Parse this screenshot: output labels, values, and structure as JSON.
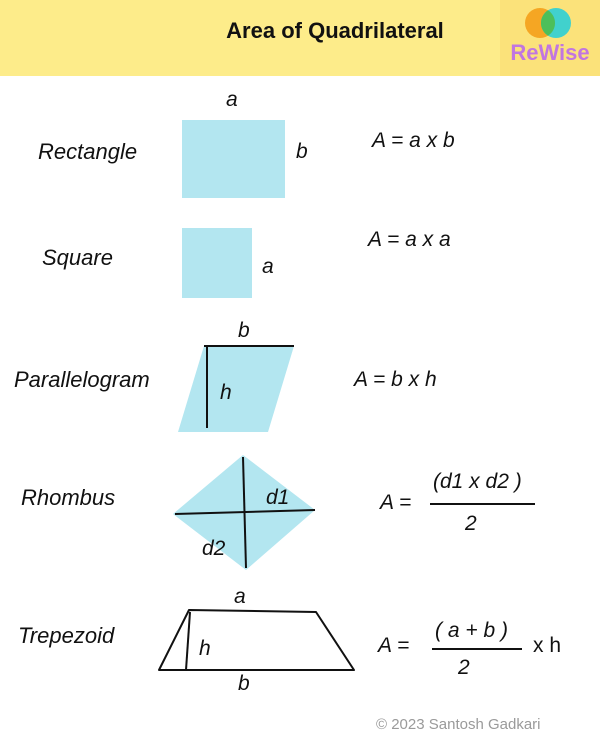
{
  "header": {
    "title": "Area of Quadrilateral",
    "logo_text": "ReWise",
    "colors": {
      "banner": "#fdec8a",
      "logo_text": "#c176e0",
      "circle_left": "#f5a623",
      "circle_right": "#2ccfd6"
    }
  },
  "shapes": [
    {
      "name": "Rectangle",
      "labels": {
        "a": "a",
        "b": "b"
      },
      "formula": "A = a x b"
    },
    {
      "name": "Square",
      "labels": {
        "a": "a"
      },
      "formula": "A = a x a"
    },
    {
      "name": "Parallelogram",
      "labels": {
        "b": "b",
        "h": "h"
      },
      "formula": "A = b  x h"
    },
    {
      "name": "Rhombus",
      "labels": {
        "d1": "d1",
        "d2": "d2"
      },
      "formula": {
        "lhs": "A =",
        "numerator": "(d1 x d2 )",
        "denominator": "2"
      }
    },
    {
      "name": "Trepezoid",
      "labels": {
        "a": "a",
        "b": "b",
        "h": "h"
      },
      "formula": {
        "lhs": "A =",
        "numerator": "( a + b )",
        "denominator": "2",
        "suffix": "x h"
      }
    }
  ],
  "shape_fill": "#b3e6f0",
  "copyright": "© 2023 Santosh Gadkari"
}
